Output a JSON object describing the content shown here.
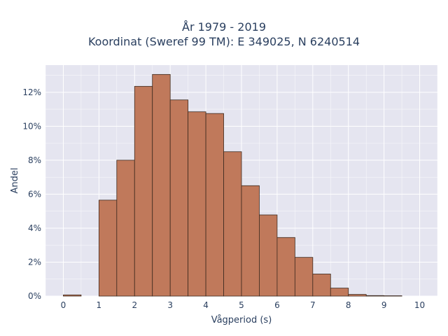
{
  "chart_data": {
    "type": "bar",
    "title": "År 1979 - 2019",
    "subtitle": "Koordinat (Sweref 99 TM): E 349025, N 6240514",
    "xlabel": "Vågperiod (s)",
    "ylabel": "Andel",
    "bin_width": 0.5,
    "bins": [
      {
        "x0": 0.0,
        "value": 0.07
      },
      {
        "x0": 1.0,
        "value": 5.65
      },
      {
        "x0": 1.5,
        "value": 8.0
      },
      {
        "x0": 2.0,
        "value": 12.35
      },
      {
        "x0": 2.5,
        "value": 13.05
      },
      {
        "x0": 3.0,
        "value": 11.55
      },
      {
        "x0": 3.5,
        "value": 10.85
      },
      {
        "x0": 4.0,
        "value": 10.75
      },
      {
        "x0": 4.5,
        "value": 8.5
      },
      {
        "x0": 5.0,
        "value": 6.5
      },
      {
        "x0": 5.5,
        "value": 4.78
      },
      {
        "x0": 6.0,
        "value": 3.45
      },
      {
        "x0": 6.5,
        "value": 2.28
      },
      {
        "x0": 7.0,
        "value": 1.3
      },
      {
        "x0": 7.5,
        "value": 0.47
      },
      {
        "x0": 8.0,
        "value": 0.1
      },
      {
        "x0": 8.5,
        "value": 0.03
      },
      {
        "x0": 9.0,
        "value": 0.02
      }
    ],
    "xlim": [
      -0.5,
      10.5
    ],
    "ylim": [
      0,
      13.6
    ],
    "xticks": [
      0,
      1,
      2,
      3,
      4,
      5,
      6,
      7,
      8,
      9,
      10
    ],
    "xtick_labels": [
      "0",
      "1",
      "2",
      "3",
      "4",
      "5",
      "6",
      "7",
      "8",
      "9",
      "10"
    ],
    "yticks": [
      0,
      2,
      4,
      6,
      8,
      10,
      12
    ],
    "ytick_labels": [
      "0%",
      "2%",
      "4%",
      "6%",
      "8%",
      "10%",
      "12%"
    ],
    "grid": true,
    "colors": {
      "bar_fill": "#c0795b",
      "bar_edge": "#3d2a1f",
      "plot_bg": "#e5e5f0",
      "grid": "#ffffff"
    }
  }
}
